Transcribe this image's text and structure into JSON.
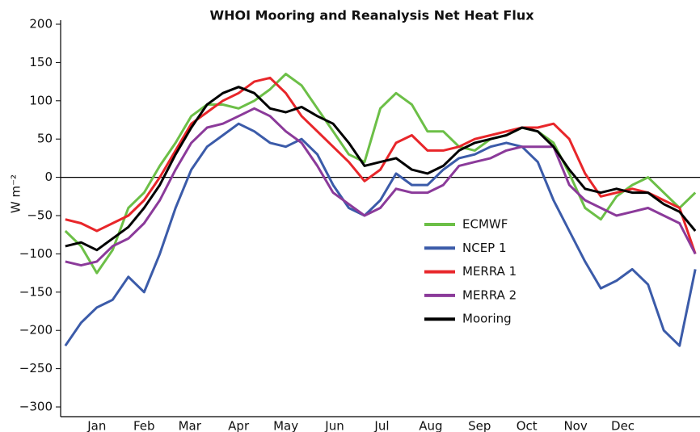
{
  "chart_data": {
    "type": "line",
    "title": "WHOI Mooring and Reanalysis Net Heat Flux",
    "y_label": "W m⁻²",
    "x": [
      -5,
      5,
      15,
      25,
      35,
      45,
      55,
      65,
      75,
      85,
      95,
      105,
      115,
      125,
      135,
      145,
      155,
      165,
      175,
      185,
      195,
      205,
      215,
      225,
      235,
      245,
      255,
      265,
      275,
      285,
      295,
      305,
      315,
      325,
      335,
      345,
      355,
      365,
      375,
      385,
      395
    ],
    "xlim": [
      -8,
      398
    ],
    "xticks": [
      {
        "value": 15,
        "label": "Jan"
      },
      {
        "value": 45,
        "label": "Feb"
      },
      {
        "value": 74,
        "label": "Mar"
      },
      {
        "value": 105,
        "label": "Apr"
      },
      {
        "value": 135,
        "label": "May"
      },
      {
        "value": 166,
        "label": "Jun"
      },
      {
        "value": 196,
        "label": "Jul"
      },
      {
        "value": 227,
        "label": "Aug"
      },
      {
        "value": 258,
        "label": "Sep"
      },
      {
        "value": 288,
        "label": "Oct"
      },
      {
        "value": 319,
        "label": "Nov"
      },
      {
        "value": 349,
        "label": "Dec"
      }
    ],
    "ylim": [
      -300,
      200
    ],
    "yticks": [
      {
        "value": -300,
        "label": "−300"
      },
      {
        "value": -250,
        "label": "−250"
      },
      {
        "value": -200,
        "label": "−200"
      },
      {
        "value": -150,
        "label": "−150"
      },
      {
        "value": -100,
        "label": "−100"
      },
      {
        "value": -50,
        "label": "−50"
      },
      0,
      50,
      100,
      150,
      200
    ],
    "zero_line": true,
    "series": [
      {
        "name": "ECMWF",
        "color": "#6cbf47",
        "values": [
          -70,
          -90,
          -125,
          -95,
          -40,
          -20,
          15,
          45,
          80,
          95,
          95,
          90,
          100,
          115,
          135,
          120,
          90,
          60,
          30,
          20,
          90,
          110,
          95,
          60,
          60,
          40,
          35,
          50,
          55,
          65,
          60,
          45,
          5,
          -40,
          -55,
          -25,
          -10,
          0,
          -20,
          -40,
          -20
        ]
      },
      {
        "name": "NCEP 1",
        "color": "#3b5ba9",
        "values": [
          -220,
          -190,
          -170,
          -160,
          -130,
          -150,
          -100,
          -40,
          10,
          40,
          55,
          70,
          60,
          45,
          40,
          50,
          30,
          -10,
          -40,
          -50,
          -30,
          5,
          -10,
          -10,
          10,
          25,
          30,
          40,
          45,
          40,
          20,
          -30,
          -70,
          -110,
          -145,
          -135,
          -120,
          -140,
          -200,
          -220,
          -120
        ]
      },
      {
        "name": "MERRA 1",
        "color": "#e8262a",
        "values": [
          -55,
          -60,
          -70,
          -60,
          -50,
          -30,
          0,
          35,
          70,
          85,
          100,
          110,
          125,
          130,
          110,
          80,
          60,
          40,
          20,
          -5,
          10,
          45,
          55,
          35,
          35,
          40,
          50,
          55,
          60,
          65,
          65,
          70,
          50,
          5,
          -25,
          -20,
          -15,
          -20,
          -30,
          -40,
          -100
        ]
      },
      {
        "name": "MERRA 2",
        "color": "#8b3a9a",
        "values": [
          -110,
          -115,
          -110,
          -90,
          -80,
          -60,
          -30,
          10,
          45,
          65,
          70,
          80,
          90,
          80,
          60,
          45,
          15,
          -20,
          -35,
          -50,
          -40,
          -15,
          -20,
          -20,
          -10,
          15,
          20,
          25,
          35,
          40,
          40,
          40,
          -10,
          -30,
          -40,
          -50,
          -45,
          -40,
          -50,
          -60,
          -100
        ]
      },
      {
        "name": "Mooring",
        "color": "#000000",
        "values": [
          -90,
          -85,
          -95,
          -80,
          -65,
          -40,
          -10,
          30,
          65,
          95,
          110,
          118,
          110,
          90,
          85,
          92,
          80,
          70,
          45,
          15,
          20,
          25,
          10,
          5,
          15,
          35,
          45,
          50,
          55,
          65,
          60,
          40,
          10,
          -15,
          -20,
          -15,
          -20,
          -20,
          -35,
          -45,
          -70
        ]
      }
    ]
  }
}
